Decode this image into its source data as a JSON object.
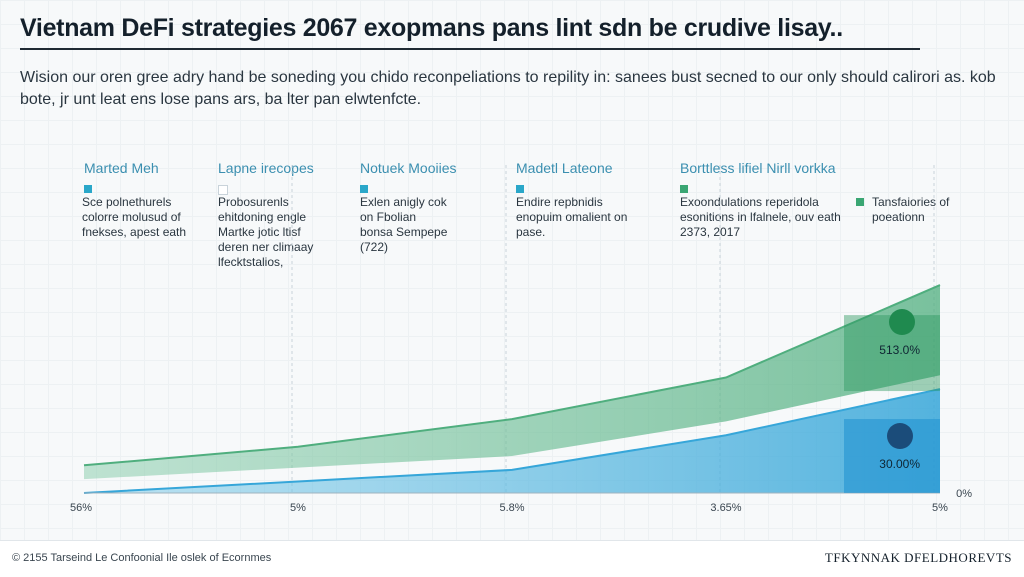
{
  "header": {
    "title": "Vietnam DeFi strategies 2067 exopmans pans lint sdn be crudive lisay..",
    "subtitle": "Wision our oren gree adry hand be soneding you chido reconpeliations to repility in: sanees bust secned to our only should calirori as. kob bote, jr unt leat ens lose pans ars, ba lter pan elwtenfcte."
  },
  "stages": [
    {
      "label": "Marted Meh",
      "color": "#2aa7c9",
      "description": [
        "Sce polnethurels",
        "colorre molusud of",
        "fnekses, apest eath"
      ]
    },
    {
      "label": "Lapne irecopes",
      "color": "#ffffff",
      "description": [
        "Probosurenls",
        "ehitdoning engle",
        "Martke jotic ltisf",
        "deren ner climaay",
        "lfecktstalios,"
      ]
    },
    {
      "label": "Notuek Mooiies",
      "color": "#2aa7c9",
      "description": [
        "Exlen anigly cok",
        "on Fbolian",
        "bonsa Sempepe",
        "(722)"
      ]
    },
    {
      "label": "Madetl Lateone",
      "color": "#2aa7c9",
      "description": [
        "Endire repbnidis",
        "enopuim omalient on",
        "pase."
      ]
    },
    {
      "label": "Borttless lifiel Nirll vorkka",
      "color": "#3aa673",
      "description": [
        "Exoondulations reperidola",
        "esonitions in lfalnele, ouv eath",
        "2373, 2017"
      ]
    }
  ],
  "legend": {
    "label": "Tansfaiories of poeationn",
    "color": "#3aa673"
  },
  "chart_data": {
    "type": "area",
    "x": [
      0,
      1,
      2,
      3,
      4
    ],
    "tick_labels": [
      "56%",
      "5%",
      "5.8%",
      "3.65%",
      "5%"
    ],
    "right_axis_label": "0%",
    "ylim": [
      0,
      100
    ],
    "series": [
      {
        "name": "green",
        "color": "#4fae7e",
        "values": [
          12,
          20,
          32,
          50,
          90
        ]
      },
      {
        "name": "blue",
        "color": "#36a6d9",
        "values": [
          0,
          5,
          10,
          25,
          45
        ]
      }
    ],
    "markers": [
      {
        "series": "green",
        "x": 4,
        "label": "513.0%",
        "color": "#1f8a4f",
        "badge": "highlight-green"
      },
      {
        "series": "blue",
        "x": 4,
        "label": "30.00%",
        "color": "#1b4c7a",
        "badge": "highlight-blue"
      }
    ]
  },
  "footer": {
    "left": "© 2155 Tarseind Le Confoonial Ile oslek of Ecornmes",
    "right": "TFKYNNAK DFELDHOREVTS"
  }
}
